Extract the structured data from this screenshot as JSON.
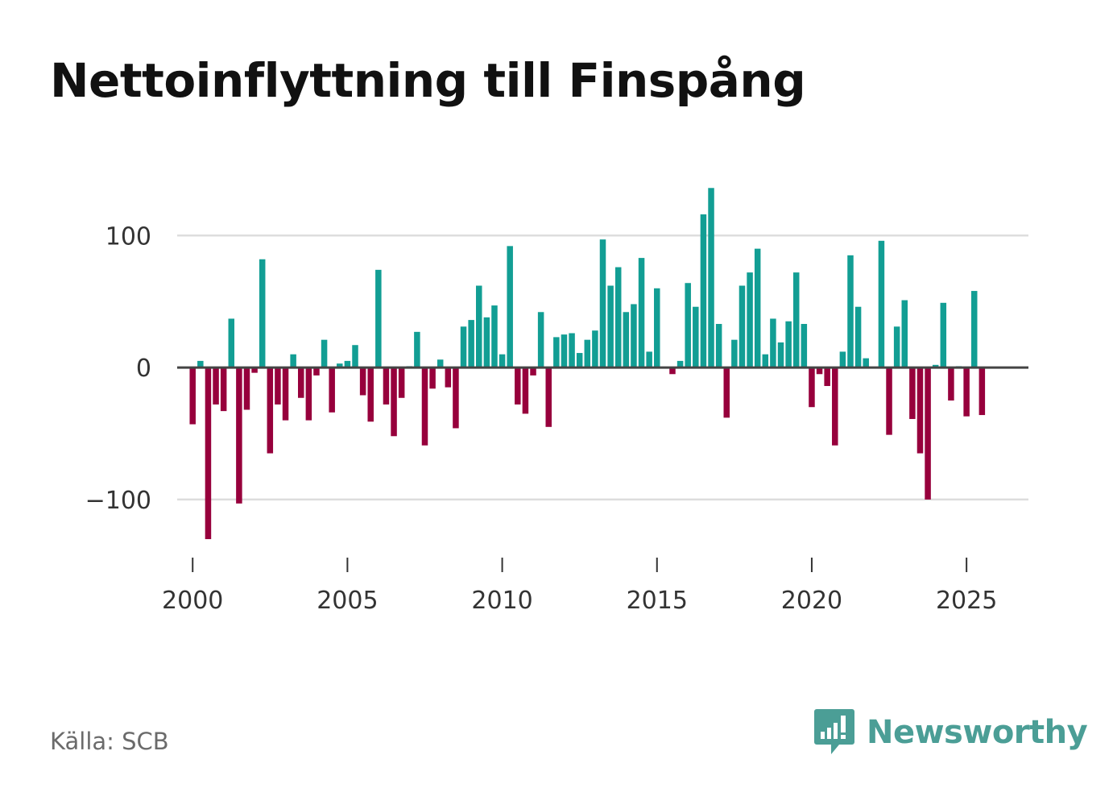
{
  "title": "Nettoinflyttning till Finspång",
  "source": "Källa: SCB",
  "brand": "Newsworthy",
  "colors": {
    "positive": "#129e94",
    "negative": "#97003c",
    "brand": "#4b9e96",
    "grid": "#dddddd",
    "zero_line": "#444444"
  },
  "chart_data": {
    "type": "bar",
    "title": "Nettoinflyttning till Finspång",
    "xlabel": "",
    "ylabel": "",
    "ylim": [
      -155,
      138
    ],
    "xlim": [
      1999.5,
      2027.0
    ],
    "y_ticks": [
      {
        "value": 100,
        "label": "100"
      },
      {
        "value": 0,
        "label": "0"
      },
      {
        "value": -100,
        "label": "−100"
      }
    ],
    "x_ticks": [
      2000,
      2005,
      2010,
      2015,
      2020,
      2025
    ],
    "grid": true,
    "series": [
      {
        "name": "Nettoinflyttning",
        "start_year": 2000,
        "interval": "quarter",
        "values": [
          -43,
          5,
          -130,
          -28,
          -33,
          37,
          -103,
          -32,
          -4,
          82,
          -65,
          -28,
          -40,
          10,
          -23,
          -40,
          -6,
          21,
          -34,
          3,
          5,
          17,
          -21,
          -41,
          74,
          -28,
          -52,
          -23,
          1,
          27,
          -59,
          -16,
          6,
          -15,
          -46,
          31,
          36,
          62,
          38,
          47,
          10,
          92,
          -28,
          -35,
          -6,
          42,
          -45,
          23,
          25,
          26,
          11,
          21,
          28,
          97,
          62,
          76,
          42,
          48,
          83,
          12,
          60,
          0,
          -5,
          5,
          64,
          46,
          116,
          136,
          33,
          -38,
          21,
          62,
          72,
          90,
          10,
          37,
          19,
          35,
          72,
          33,
          -30,
          -5,
          -14,
          -59,
          12,
          85,
          46,
          7,
          0,
          96,
          -51,
          31,
          51,
          -39,
          -65,
          -100,
          2,
          49,
          -25,
          1,
          -37,
          58,
          -36
        ]
      }
    ]
  }
}
